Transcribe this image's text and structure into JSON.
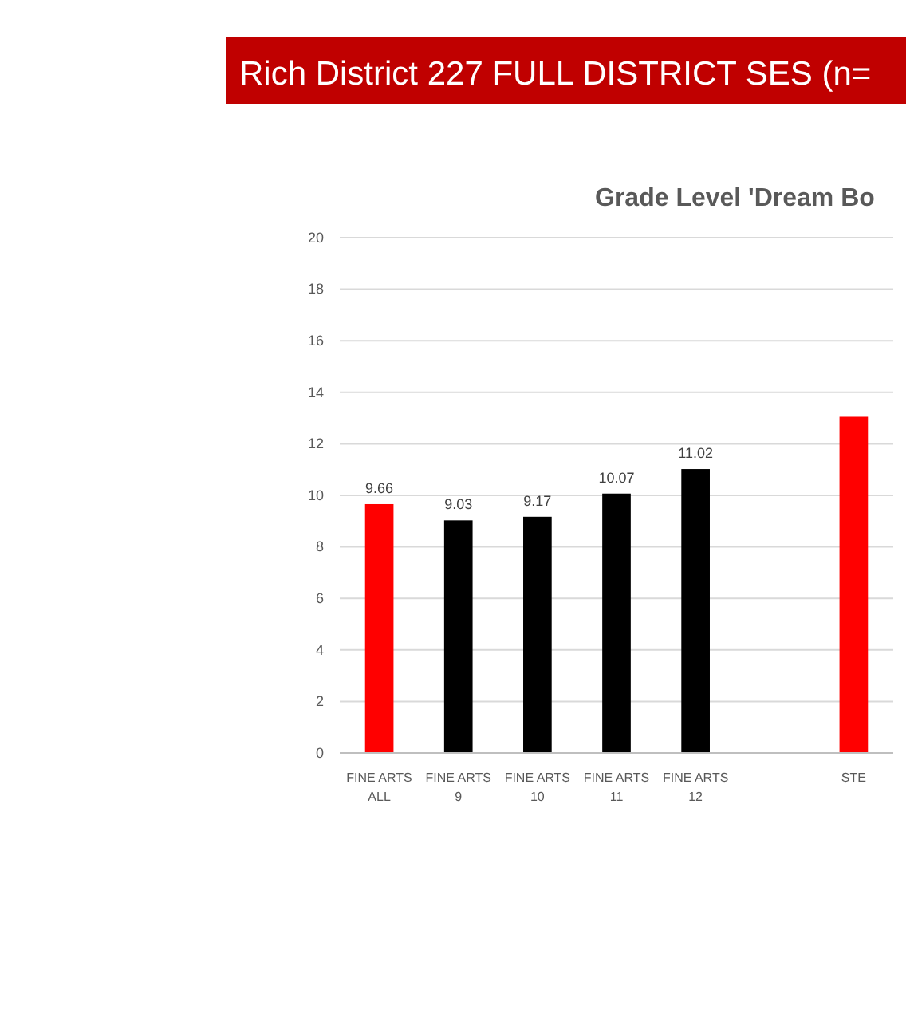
{
  "chart_data": {
    "type": "bar",
    "title": "Rich District 227 FULL DISTRICT SES (n=",
    "subtitle": "Grade Level 'Dream Bo",
    "categories": [
      "FINE ARTS ALL",
      "FINE ARTS 9",
      "FINE ARTS 10",
      "FINE ARTS 11",
      "FINE ARTS 12",
      null,
      "STE"
    ],
    "values": [
      9.66,
      9.03,
      9.17,
      10.07,
      11.02,
      null,
      13.05
    ],
    "colors": [
      "#ff0000",
      "#000000",
      "#000000",
      "#000000",
      "#000000",
      null,
      "#ff0000"
    ],
    "value_labels": [
      "9.66",
      "9.03",
      "9.17",
      "10.07",
      "11.02",
      null,
      null
    ],
    "ylim": [
      0,
      20
    ],
    "yticks": [
      0,
      2,
      4,
      6,
      8,
      10,
      12,
      14,
      16,
      18,
      20
    ],
    "grid": "y"
  }
}
